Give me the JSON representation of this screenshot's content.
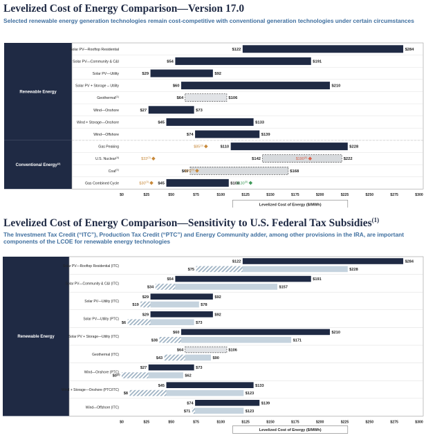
{
  "chart_data": [
    {
      "type": "bar",
      "orientation": "horizontal",
      "style": "floating-range",
      "title": "Levelized Cost of Energy Comparison—Version 17.0",
      "subtitle": "Selected renewable energy generation technologies remain cost-competitive with conventional generation technologies under certain circumstances",
      "xlabel": "Levelized Cost of Energy ($/MWh)",
      "xlim": [
        0,
        300
      ],
      "xticks": [
        "$0",
        "$25",
        "$50",
        "$75",
        "$100",
        "$125",
        "$150",
        "$175",
        "$200",
        "$225",
        "$250",
        "$275",
        "$300"
      ],
      "groups": [
        {
          "label": "Renewable Energy",
          "rows": [
            {
              "label": "Solar PV—Rooftop Residential",
              "low": 122,
              "high": 284,
              "low_label": "$122",
              "high_label": "$284"
            },
            {
              "label": "Solar PV—Community & C&I",
              "low": 54,
              "high": 191,
              "low_label": "$54",
              "high_label": "$191"
            },
            {
              "label": "Solar PV—Utility",
              "low": 29,
              "high": 92,
              "low_label": "$29",
              "high_label": "$92"
            },
            {
              "label": "Solar PV + Storage – Utility",
              "low": 60,
              "high": 210,
              "low_label": "$60",
              "high_label": "$210"
            },
            {
              "label": "Geothermal",
              "sup": "(1)",
              "low": 64,
              "high": 106,
              "low_label": "$64",
              "high_label": "$106",
              "dashed": true
            },
            {
              "label": "Wind—Onshore",
              "low": 27,
              "high": 73,
              "low_label": "$27",
              "high_label": "$73"
            },
            {
              "label": "Wind + Storage—Onshore",
              "low": 45,
              "high": 133,
              "low_label": "$45",
              "high_label": "$133"
            },
            {
              "label": "Wind—Offshore",
              "low": 74,
              "high": 139,
              "low_label": "$74",
              "high_label": "$139"
            }
          ]
        },
        {
          "label": "Conventional Energy",
          "sup": "(2)",
          "rows": [
            {
              "label": "Gas Peaking",
              "low": 110,
              "high": 228,
              "low_label": "$110",
              "high_label": "$228",
              "markers": [
                {
                  "value": 85,
                  "label": "$85",
                  "sup": "(3)",
                  "color": "#c8893a"
                }
              ]
            },
            {
              "label": "U.S. Nuclear",
              "sup": "(4)",
              "low": 142,
              "high": 222,
              "low_label": "$142",
              "high_label": "$222",
              "dashed": true,
              "light": true,
              "markers": [
                {
                  "value": 32,
                  "label": "$32",
                  "sup": "(3)",
                  "color": "#c8893a",
                  "label_side": "left"
                },
                {
                  "value": 190,
                  "label": "$190",
                  "sup": "(5)",
                  "color": "#d9604a"
                }
              ]
            },
            {
              "label": "Coal",
              "sup": "(1)",
              "low": 69,
              "high": 168,
              "low_label": "$69",
              "high_label": "$168",
              "dashed": true,
              "light": true,
              "markers": [
                {
                  "value": 76,
                  "label": "$76",
                  "sup": "(5)",
                  "color": "#c8893a"
                }
              ]
            },
            {
              "label": "Gas Combined Cycle",
              "low": 45,
              "high": 108,
              "low_label": "$45",
              "high_label": "$108",
              "markers": [
                {
                  "value": 30,
                  "label": "$30",
                  "sup": "(3)",
                  "color": "#c8893a",
                  "label_side": "left"
                },
                {
                  "value": 130,
                  "label": "$130",
                  "sup": "(5)",
                  "color": "#3f9a5a"
                }
              ]
            }
          ]
        }
      ]
    },
    {
      "type": "bar",
      "orientation": "horizontal",
      "style": "floating-range-paired",
      "title": "Levelized Cost of Energy Comparison—Sensitivity to U.S. Federal Tax Subsidies",
      "title_sup": "(1)",
      "subtitle": "The Investment Tax Credit (“ITC”), Production Tax Credit (“PTC”) and Energy Community adder, among other provisions in the IRA, are important components of the LCOE for renewable energy technologies",
      "xlabel": "Levelized Cost of Energy ($/MWh)",
      "xlim": [
        0,
        300
      ],
      "xticks": [
        "$0",
        "$25",
        "$50",
        "$75",
        "$100",
        "$125",
        "$150",
        "$175",
        "$200",
        "$225",
        "$250",
        "$275",
        "$300"
      ],
      "group_label": "Renewable Energy",
      "rows": [
        {
          "label": "Solar PV—Rooftop Residential (ITC)",
          "low": 122,
          "high": 284,
          "low_label": "$122",
          "high_label": "$284",
          "sub_low": 75,
          "sub_high": 228,
          "sub_low_label": "$75",
          "sub_high_label": "$228"
        },
        {
          "label": "Solar PV—Community & C&I (ITC)",
          "low": 54,
          "high": 191,
          "low_label": "$54",
          "high_label": "$191",
          "sub_low": 34,
          "sub_high": 157,
          "sub_low_label": "$34",
          "sub_high_label": "$157"
        },
        {
          "label": "Solar PV—Utility (ITC)",
          "low": 29,
          "high": 92,
          "low_label": "$29",
          "high_label": "$92",
          "sub_low": 19,
          "sub_high": 78,
          "sub_low_label": "$19",
          "sub_high_label": "$78"
        },
        {
          "label": "Solar PV—Utility (PTC)",
          "low": 29,
          "high": 92,
          "low_label": "$29",
          "high_label": "$92",
          "sub_low": 6,
          "sub_high": 73,
          "sub_low_label": "$6",
          "sub_high_label": "$73"
        },
        {
          "label": "Solar PV + Storage—Utility (ITC)",
          "low": 60,
          "high": 210,
          "low_label": "$60",
          "high_label": "$210",
          "sub_low": 38,
          "sub_high": 171,
          "sub_low_label": "$38",
          "sub_high_label": "$171"
        },
        {
          "label": "Geothermal (ITC)",
          "low": 64,
          "high": 106,
          "low_label": "$64",
          "high_label": "$106",
          "dashed": true,
          "sub_low": 43,
          "sub_high": 90,
          "sub_low_label": "$43",
          "sub_high_label": "$90"
        },
        {
          "label": "Wind—Onshore (PTC)",
          "low": 27,
          "high": 73,
          "low_label": "$27",
          "high_label": "$73",
          "sub_low": 0,
          "sub_high": 62,
          "sub_low_label": "$0",
          "sub_low_sup": "(2)",
          "sub_high_label": "$62"
        },
        {
          "label": "Wind + Storage—Onshore (PTC/ITC)",
          "low": 45,
          "high": 133,
          "low_label": "$45",
          "high_label": "$133",
          "sub_low": 8,
          "sub_high": 123,
          "sub_low_label": "$8",
          "sub_high_label": "$123"
        },
        {
          "label": "Wind—Offshore (ITC)",
          "low": 74,
          "high": 139,
          "low_label": "$74",
          "high_label": "$139",
          "sub_low": 71,
          "sub_high": 123,
          "sub_low_label": "$71",
          "sub_high_label": "$123"
        }
      ]
    }
  ],
  "colors": {
    "navy": "#1f2a44",
    "title": "#1f2a44",
    "subtitle": "#3f6f9f",
    "light_bar": "#c5d3de",
    "dashed_fill": "#e1e3e6",
    "gold_marker": "#c8893a"
  }
}
